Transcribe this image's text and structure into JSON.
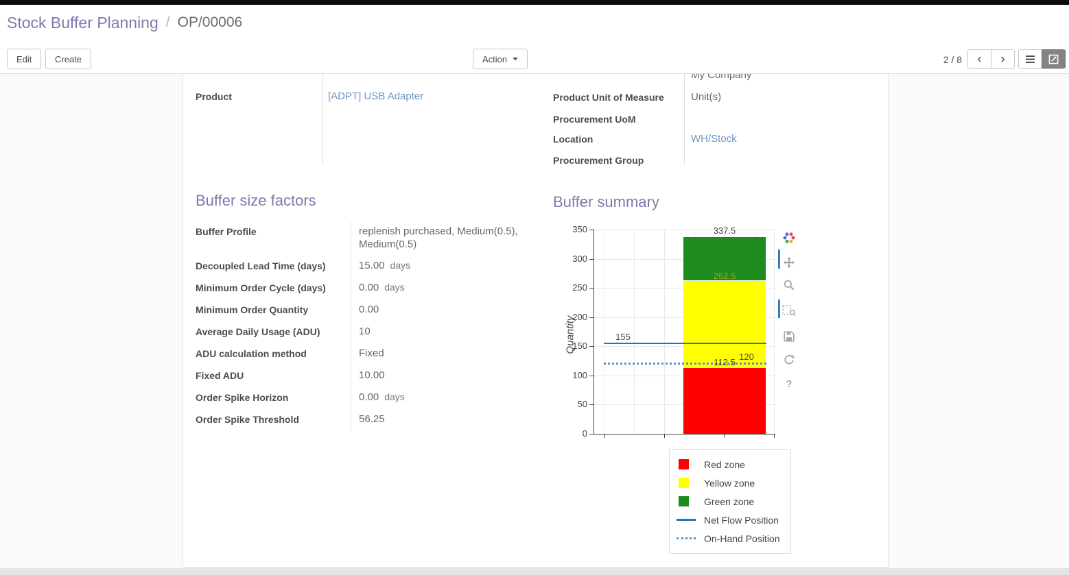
{
  "breadcrumb": {
    "parent": "Stock Buffer Planning",
    "separator": "/",
    "current": "OP/00006"
  },
  "control_panel": {
    "edit": "Edit",
    "create": "Create",
    "action": "Action",
    "pager": "2 / 8"
  },
  "icons": {
    "pager_prev": "chevron-left",
    "pager_next": "chevron-right",
    "list_view": "hamburger-lines",
    "form_view": "pencil-square",
    "chart_toolbar": [
      "plotly-logo",
      "pan-arrows",
      "magnifier",
      "zoom-box",
      "save-floppy",
      "reset-circular-arrows",
      "question-mark"
    ]
  },
  "form": {
    "header_fields_left": [
      {
        "label": "Product",
        "value": "[ADPT] USB Adapter"
      }
    ],
    "header_fields_right": [
      {
        "label": "",
        "value": "My Company"
      },
      {
        "label": "Product Unit of Measure",
        "value": "Unit(s)"
      },
      {
        "label": "Procurement UoM",
        "value": ""
      },
      {
        "label": "Location",
        "value": "WH/Stock"
      },
      {
        "label": "Procurement Group",
        "value": ""
      }
    ],
    "section_factors": "Buffer size factors",
    "section_summary": "Buffer summary",
    "factor_fields": [
      {
        "label": "Buffer Profile",
        "value": "replenish purchased, Medium(0.5), Medium(0.5)"
      },
      {
        "label": "Decoupled Lead Time (days)",
        "value": "15.00",
        "suffix": "days"
      },
      {
        "label": "Minimum Order Cycle (days)",
        "value": "0.00",
        "suffix": "days"
      },
      {
        "label": "Minimum Order Quantity",
        "value": "0.00"
      },
      {
        "label": "Average Daily Usage (ADU)",
        "value": "10"
      },
      {
        "label": "ADU calculation method",
        "value": "Fixed"
      },
      {
        "label": "Fixed ADU",
        "value": "10.00"
      },
      {
        "label": "Order Spike Horizon",
        "value": "0.00",
        "suffix": "days"
      },
      {
        "label": "Order Spike Threshold",
        "value": "56.25"
      }
    ]
  },
  "chart_data": {
    "type": "bar",
    "title": "",
    "xlabel": "",
    "ylabel": "Quantity",
    "ylim": [
      0,
      350
    ],
    "yticks": [
      0,
      50,
      100,
      150,
      200,
      250,
      300,
      350
    ],
    "grid": true,
    "zones": [
      {
        "name": "Red zone",
        "from": 0,
        "to": 112.5,
        "color": "#ff0000"
      },
      {
        "name": "Yellow zone",
        "from": 112.5,
        "to": 262.5,
        "color": "#ffff00"
      },
      {
        "name": "Green zone",
        "from": 262.5,
        "to": 337.5,
        "color": "#1e8b1e"
      }
    ],
    "lines": [
      {
        "name": "Net Flow Position",
        "value": 155,
        "style": "solid",
        "color": "#1f77b4"
      },
      {
        "name": "On-Hand Position",
        "value": 120,
        "style": "dotted",
        "color": "#4f94cd"
      }
    ],
    "annotation_labels": [
      "337.5",
      "262.5",
      "155",
      "112.5",
      "120"
    ],
    "legend_position": "bottom-right"
  },
  "colors": {
    "accent": "#7c7bad",
    "link": "#6d94c4"
  }
}
